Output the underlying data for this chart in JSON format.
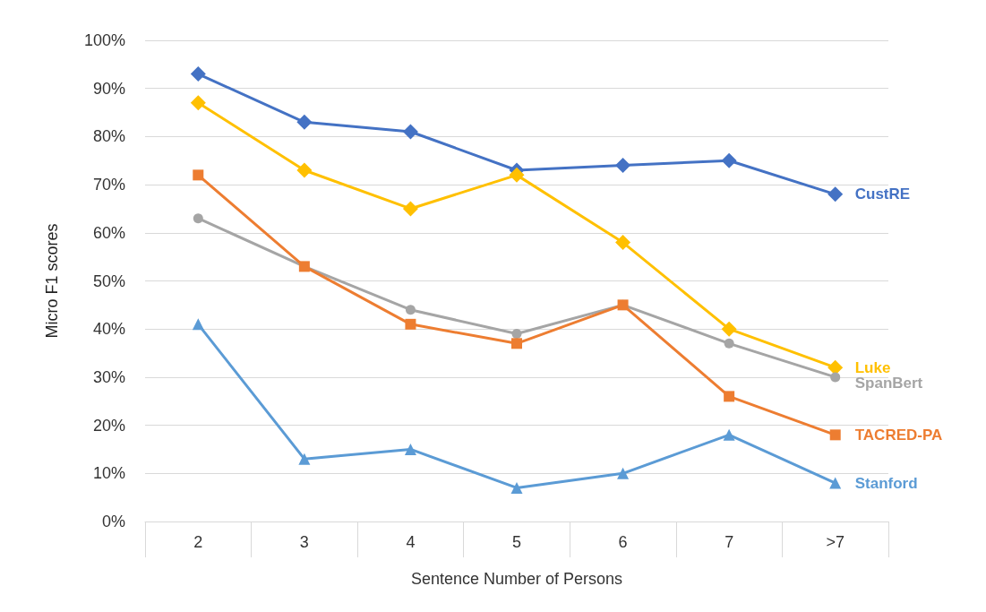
{
  "chart_data": {
    "type": "line",
    "xlabel": "Sentence Number of Persons",
    "ylabel": "Micro F1 scores",
    "categories": [
      "2",
      "3",
      "4",
      "5",
      "6",
      "7",
      ">7"
    ],
    "series": [
      {
        "name": "CustRE",
        "color": "#4472c4",
        "marker": "diamond",
        "values": [
          93,
          83,
          81,
          73,
          74,
          75,
          68
        ]
      },
      {
        "name": "Luke",
        "color": "#ffc000",
        "marker": "diamond",
        "values": [
          87,
          73,
          65,
          72,
          58,
          40,
          32
        ]
      },
      {
        "name": "SpanBert",
        "color": "#a5a5a5",
        "marker": "circle",
        "values": [
          63,
          53,
          44,
          39,
          45,
          37,
          30
        ]
      },
      {
        "name": "TACRED-PA",
        "color": "#ed7d31",
        "marker": "square",
        "values": [
          72,
          53,
          41,
          37,
          45,
          26,
          18
        ]
      },
      {
        "name": "Stanford",
        "color": "#5b9bd5",
        "marker": "triangle",
        "values": [
          41,
          13,
          15,
          7,
          10,
          18,
          8
        ]
      }
    ],
    "ylim": [
      0,
      100
    ],
    "yticks": [
      {
        "value": 0,
        "label": "0%"
      },
      {
        "value": 10,
        "label": "10%"
      },
      {
        "value": 20,
        "label": "20%"
      },
      {
        "value": 30,
        "label": "30%"
      },
      {
        "value": 40,
        "label": "40%"
      },
      {
        "value": 50,
        "label": "50%"
      },
      {
        "value": 60,
        "label": "60%"
      },
      {
        "value": 70,
        "label": "70%"
      },
      {
        "value": 80,
        "label": "80%"
      },
      {
        "value": 90,
        "label": "90%"
      },
      {
        "value": 100,
        "label": "100%"
      }
    ],
    "grid": "y",
    "legend": false,
    "line_style": "solid"
  }
}
